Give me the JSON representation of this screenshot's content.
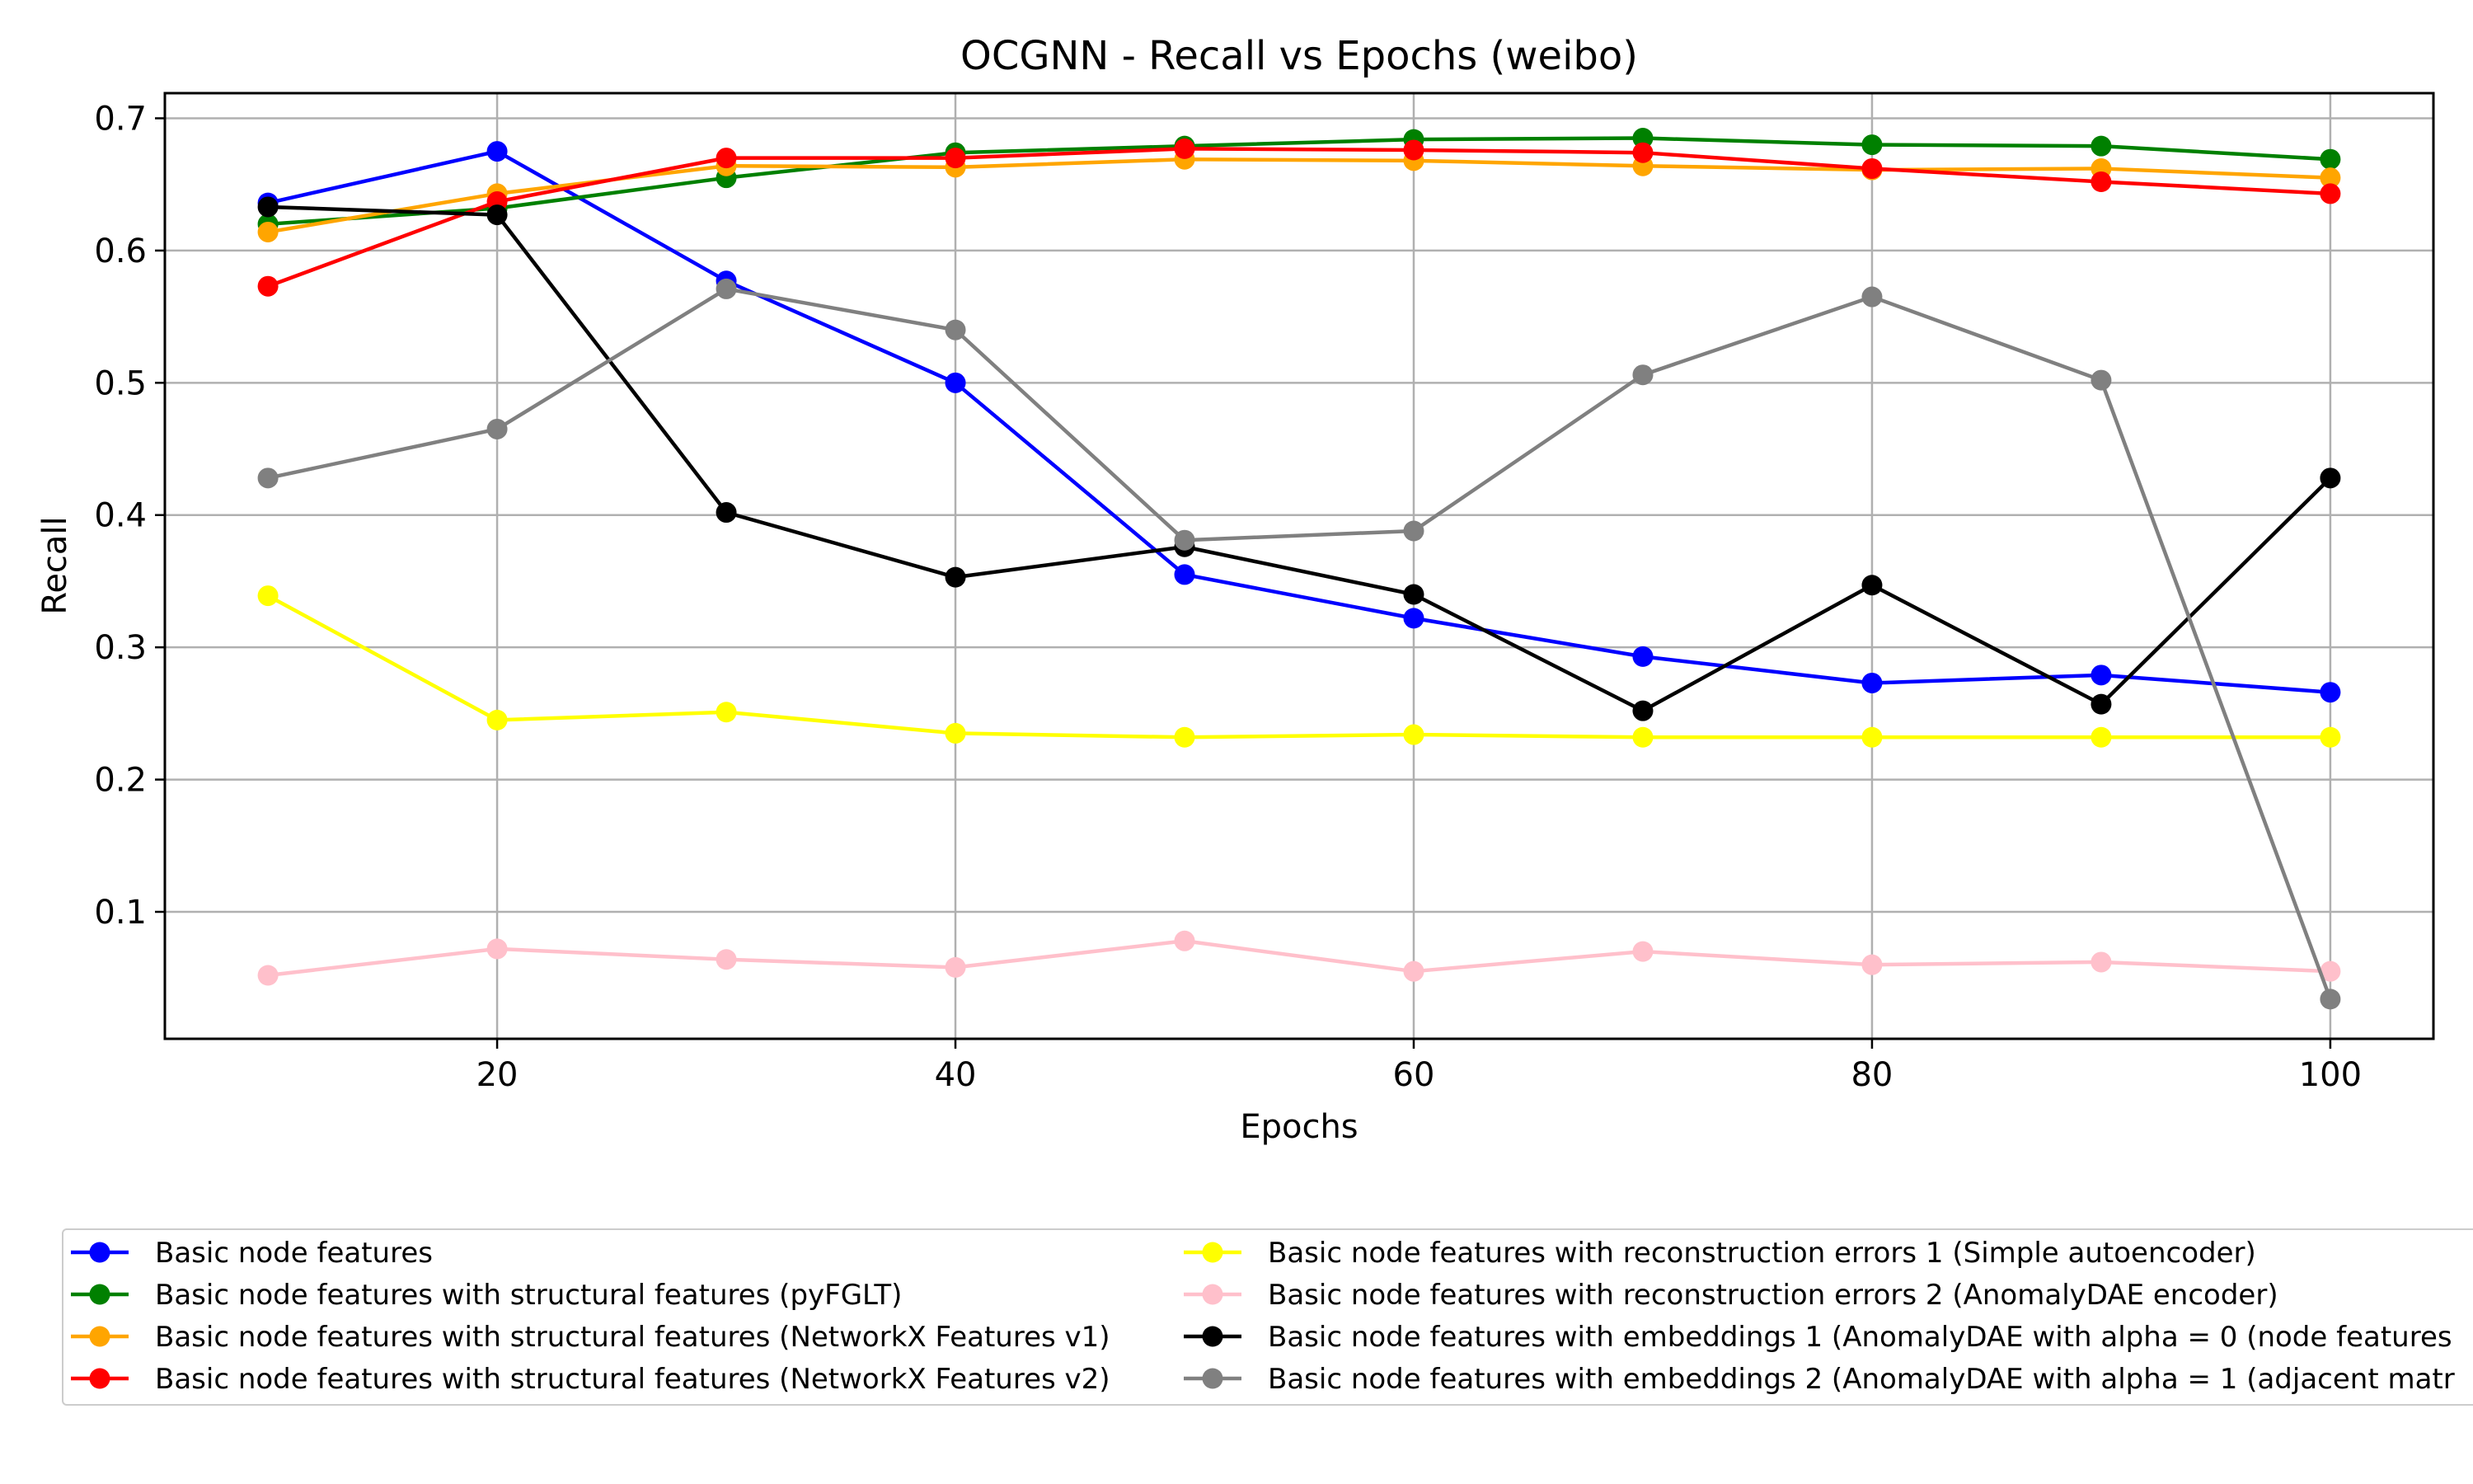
{
  "chart_data": {
    "type": "line",
    "title": "OCGNN - Recall vs Epochs (weibo)",
    "xlabel": "Epochs",
    "ylabel": "Recall",
    "xlim": [
      5.5,
      104.5
    ],
    "ylim": [
      0.004,
      0.719
    ],
    "xticks": [
      20,
      40,
      60,
      80,
      100
    ],
    "yticks": [
      0.1,
      0.2,
      0.3,
      0.4,
      0.5,
      0.6,
      0.7
    ],
    "xtick_labels": [
      "20",
      "40",
      "60",
      "80",
      "100"
    ],
    "ytick_labels": [
      "0.1",
      "0.2",
      "0.3",
      "0.4",
      "0.5",
      "0.6",
      "0.7"
    ],
    "grid": true,
    "legend_position": "below plot, two columns",
    "x": [
      10,
      20,
      30,
      40,
      50,
      60,
      70,
      80,
      90,
      100
    ],
    "series": [
      {
        "name": "Basic node features",
        "color": "#0000ff",
        "values": [
          0.636,
          0.675,
          0.577,
          0.5,
          0.355,
          0.322,
          0.293,
          0.273,
          0.279,
          0.266
        ]
      },
      {
        "name": "Basic node features with structural features (pyFGLT)",
        "color": "#008000",
        "values": [
          0.62,
          0.632,
          0.655,
          0.674,
          0.679,
          0.684,
          0.685,
          0.68,
          0.679,
          0.669
        ]
      },
      {
        "name": "Basic node features with structural features (NetworkX Features v1)",
        "color": "#ffa500",
        "values": [
          0.614,
          0.643,
          0.664,
          0.663,
          0.669,
          0.668,
          0.664,
          0.661,
          0.662,
          0.655
        ]
      },
      {
        "name": "Basic node features with structural features (NetworkX Features v2)",
        "color": "#ff0000",
        "values": [
          0.573,
          0.637,
          0.67,
          0.67,
          0.677,
          0.676,
          0.674,
          0.662,
          0.652,
          0.643
        ]
      },
      {
        "name": "Basic node features with reconstruction errors 1 (Simple autoencoder)",
        "color": "#ffff00",
        "values": [
          0.339,
          0.245,
          0.251,
          0.235,
          0.232,
          0.234,
          0.232,
          0.232,
          0.232,
          0.232
        ]
      },
      {
        "name": "Basic node features with reconstruction errors 2 (AnomalyDAE encoder)",
        "color": "#ffc0cb",
        "values": [
          0.052,
          0.072,
          0.064,
          0.058,
          0.078,
          0.055,
          0.07,
          0.06,
          0.062,
          0.055
        ]
      },
      {
        "name": "Basic node features with embeddings 1 (AnomalyDAE with alpha = 0 (node features",
        "color": "#000000",
        "values": [
          0.633,
          0.627,
          0.402,
          0.353,
          0.376,
          0.34,
          0.252,
          0.347,
          0.257,
          0.428
        ]
      },
      {
        "name": "Basic node features with embeddings 2 (AnomalyDAE with alpha = 1 (adjacent matr",
        "color": "#808080",
        "values": [
          0.428,
          0.465,
          0.571,
          0.54,
          0.381,
          0.388,
          0.506,
          0.565,
          0.502,
          0.034
        ]
      }
    ]
  }
}
